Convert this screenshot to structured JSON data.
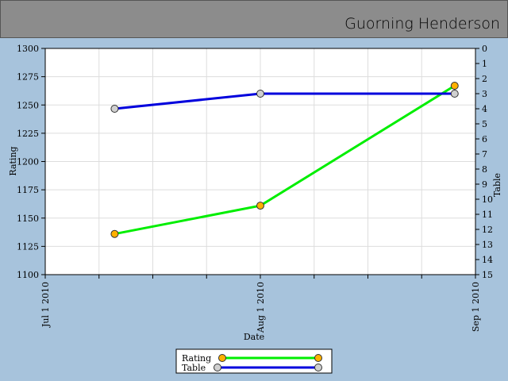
{
  "header": {
    "title": "Guorning Henderson"
  },
  "chart_data": {
    "type": "line",
    "x_label": "Date",
    "y_label": "Rating",
    "y2_label": "Table",
    "x": [
      "2010-07-11",
      "2010-08-01",
      "2010-08-29"
    ],
    "series": [
      {
        "name": "Rating",
        "color": "#00ee00",
        "marker_color": "#ffb000",
        "values": [
          1136,
          1161,
          1267
        ]
      },
      {
        "name": "Table",
        "color": "#0000dd",
        "marker_color": "#d0d0d0",
        "axis": "y2",
        "values": [
          4,
          3,
          3
        ]
      }
    ],
    "xlim": [
      "2010-07-01",
      "2010-09-01"
    ],
    "xticks": [
      {
        "value": "2010-07-01",
        "label": "Jul 1 2010"
      },
      {
        "value": "2010-08-01",
        "label": "Aug 1 2010"
      },
      {
        "value": "2010-09-01",
        "label": "Sep 1 2010"
      }
    ],
    "ylim": [
      1100,
      1300
    ],
    "yticks": [
      1100,
      1125,
      1150,
      1175,
      1200,
      1225,
      1250,
      1275,
      1300
    ],
    "y2lim": [
      15,
      0
    ],
    "y2ticks": [
      0,
      1,
      2,
      3,
      4,
      5,
      6,
      7,
      8,
      9,
      10,
      11,
      12,
      13,
      14,
      15
    ],
    "grid": true
  }
}
